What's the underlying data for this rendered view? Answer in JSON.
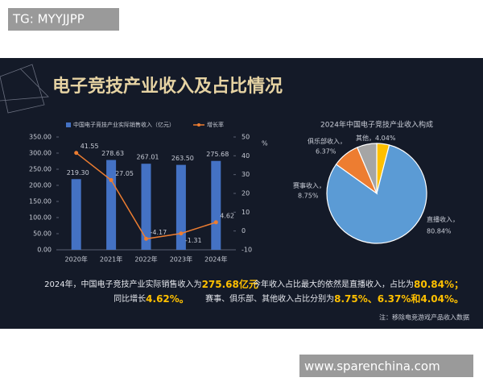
{
  "watermark": "TG: MYYJJPP",
  "site": "www.sparenchina.com",
  "header": {
    "title": "电子竞技产业收入及占比情况"
  },
  "chart_data": [
    {
      "type": "bar",
      "categories": [
        "2020年",
        "2021年",
        "2022年",
        "2023年",
        "2024年"
      ],
      "series": [
        {
          "name": "中国电子竞技产业实际销售收入（亿元）",
          "color": "#4472c4",
          "values": [
            219.3,
            278.63,
            267.01,
            263.5,
            275.68
          ],
          "value_labels": [
            "219.30",
            "278.63",
            "267.01",
            "263.50",
            "275.68"
          ]
        },
        {
          "name": "增长率",
          "color": "#ed7d31",
          "axis": "y2",
          "values": [
            41.55,
            27.05,
            -4.17,
            -1.31,
            4.62
          ]
        }
      ],
      "ylim": [
        0,
        350
      ],
      "yticks": [
        {
          "value": 0,
          "label": "0.00"
        },
        {
          "value": 50,
          "label": "50.00"
        },
        {
          "value": 100,
          "label": "100.00"
        },
        {
          "value": 150,
          "label": "150.00"
        },
        {
          "value": 200,
          "label": "200.00"
        },
        {
          "value": 250,
          "label": "250.00"
        },
        {
          "value": 300,
          "label": "300.00"
        },
        {
          "value": 350,
          "label": "350.00"
        }
      ],
      "y2lim": [
        -10,
        50
      ],
      "y2ticks": [
        -10,
        0,
        10,
        20,
        30,
        40,
        50
      ],
      "y2label": "%",
      "grid": false
    },
    {
      "type": "pie",
      "title": "2024年中国电子竞技产业收入构成",
      "categories": [
        "其他，",
        "直播收入，",
        "赛事收入，",
        "俱乐部收入，"
      ],
      "values": [
        4.04,
        80.84,
        8.75,
        6.37
      ],
      "value_labels": [
        "4.04%",
        "80.84%",
        "8.75%",
        "6.37%"
      ],
      "colors": [
        "#ffc000",
        "#5b9bd5",
        "#ed7d31",
        "#a5a5a5"
      ]
    }
  ],
  "captions": {
    "left": [
      [
        "2024年，中国电子竞技产业实际销售收入为",
        "275.68亿元"
      ],
      [
        "同比增长",
        "4.62%。"
      ]
    ],
    "right": [
      [
        "今年收入占比最大的依然是直播收入，占比为",
        "80.84%；"
      ],
      [
        "赛事、俱乐部、其他收入占比分别为",
        "8.75%、6.37%和4.04%。"
      ]
    ]
  },
  "source": "注：移除电竞游戏产品收入数据"
}
